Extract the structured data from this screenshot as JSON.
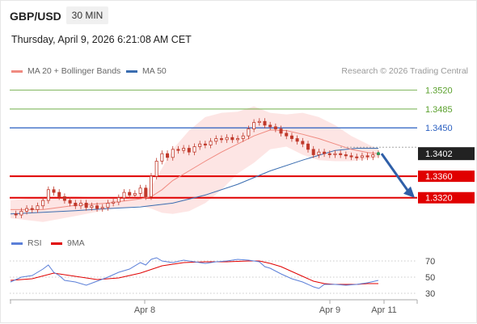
{
  "header": {
    "pair": "GBP/USD",
    "timeframe": "30 MIN",
    "datetime": "Thursday, April 9, 2026 6:21:08 AM CET"
  },
  "legend": {
    "ma20_label": "MA 20 + Bollinger Bands",
    "ma50_label": "MA 50",
    "rsi_label": "RSI",
    "ma9_label": "9MA"
  },
  "credit": "Research © 2026 Trading Central",
  "colors": {
    "ma20": "#f08a80",
    "bollinger_fill": "#fde0df",
    "ma50": "#3a6db0",
    "candle": "#c0392b",
    "resistance_green": "#5aa02c",
    "resistance_blue": "#2a5fc0",
    "support_red": "#e00000",
    "last_price_bg": "#222222",
    "rsi": "#5b7fd8",
    "rsi_ma9": "#e00000"
  },
  "chart_data": {
    "type": "line",
    "title": "GBP/USD",
    "xlabel": "",
    "ylabel": "",
    "ylim": [
      1.3255,
      1.3545
    ],
    "x_ticks": [
      "Apr 8",
      "Apr 9",
      "Apr 11"
    ],
    "last_price": 1.3402,
    "levels": [
      {
        "value": 1.352,
        "label": "1.3520",
        "kind": "resistance",
        "color": "#5aa02c",
        "style": "thin"
      },
      {
        "value": 1.3485,
        "label": "1.3485",
        "kind": "resistance",
        "color": "#5aa02c",
        "style": "thin"
      },
      {
        "value": 1.345,
        "label": "1.3450",
        "kind": "pivot",
        "color": "#2a5fc0",
        "style": "medium"
      },
      {
        "value": 1.336,
        "label": "1.3360",
        "kind": "support",
        "color": "#e00000",
        "style": "thick"
      },
      {
        "value": 1.332,
        "label": "1.3320",
        "kind": "support",
        "color": "#e00000",
        "style": "thick"
      }
    ],
    "price_points": [
      [
        0,
        1.329
      ],
      [
        4,
        1.3288
      ],
      [
        8,
        1.3295
      ],
      [
        12,
        1.33
      ],
      [
        16,
        1.3298
      ],
      [
        20,
        1.3305
      ],
      [
        24,
        1.3315
      ],
      [
        28,
        1.3335
      ],
      [
        32,
        1.333
      ],
      [
        36,
        1.3322
      ],
      [
        40,
        1.3315
      ],
      [
        44,
        1.331
      ],
      [
        48,
        1.3305
      ],
      [
        52,
        1.331
      ],
      [
        56,
        1.3302
      ],
      [
        60,
        1.3305
      ],
      [
        64,
        1.33
      ],
      [
        68,
        1.3302
      ],
      [
        72,
        1.331
      ],
      [
        76,
        1.3312
      ],
      [
        80,
        1.332
      ],
      [
        84,
        1.333
      ],
      [
        88,
        1.3325
      ],
      [
        92,
        1.3328
      ],
      [
        96,
        1.3338
      ],
      [
        100,
        1.3322
      ],
      [
        104,
        1.336
      ],
      [
        108,
        1.3388
      ],
      [
        112,
        1.3402
      ],
      [
        116,
        1.3395
      ],
      [
        120,
        1.341
      ],
      [
        124,
        1.3408
      ],
      [
        128,
        1.3412
      ],
      [
        132,
        1.3405
      ],
      [
        136,
        1.3415
      ],
      [
        140,
        1.342
      ],
      [
        144,
        1.3418
      ],
      [
        148,
        1.3425
      ],
      [
        152,
        1.343
      ],
      [
        156,
        1.3428
      ],
      [
        160,
        1.3432
      ],
      [
        164,
        1.3428
      ],
      [
        168,
        1.343
      ],
      [
        172,
        1.3435
      ],
      [
        176,
        1.3448
      ],
      [
        180,
        1.346
      ],
      [
        184,
        1.3462
      ],
      [
        188,
        1.3455
      ],
      [
        192,
        1.3452
      ],
      [
        196,
        1.3448
      ],
      [
        200,
        1.344
      ],
      [
        204,
        1.3435
      ],
      [
        208,
        1.343
      ],
      [
        212,
        1.3425
      ],
      [
        216,
        1.342
      ],
      [
        220,
        1.341
      ],
      [
        224,
        1.34
      ],
      [
        228,
        1.3405
      ],
      [
        232,
        1.3402
      ],
      [
        236,
        1.34
      ],
      [
        240,
        1.3402
      ],
      [
        244,
        1.34
      ],
      [
        248,
        1.3398
      ],
      [
        252,
        1.3396
      ],
      [
        256,
        1.3395
      ],
      [
        260,
        1.3398
      ],
      [
        264,
        1.3396
      ],
      [
        268,
        1.34
      ],
      [
        272,
        1.3402
      ]
    ],
    "ma20_points": [
      [
        0,
        1.3298
      ],
      [
        24,
        1.3298
      ],
      [
        48,
        1.3306
      ],
      [
        72,
        1.331
      ],
      [
        96,
        1.3318
      ],
      [
        104,
        1.3322
      ],
      [
        112,
        1.3335
      ],
      [
        120,
        1.3352
      ],
      [
        132,
        1.337
      ],
      [
        144,
        1.3388
      ],
      [
        156,
        1.3405
      ],
      [
        168,
        1.342
      ],
      [
        180,
        1.3435
      ],
      [
        192,
        1.3446
      ],
      [
        204,
        1.3445
      ],
      [
        216,
        1.3438
      ],
      [
        228,
        1.343
      ],
      [
        240,
        1.342
      ],
      [
        252,
        1.341
      ],
      [
        264,
        1.3404
      ],
      [
        272,
        1.3402
      ]
    ],
    "bb_upper": [
      [
        0,
        1.3315
      ],
      [
        24,
        1.3322
      ],
      [
        48,
        1.3323
      ],
      [
        72,
        1.3318
      ],
      [
        96,
        1.3328
      ],
      [
        104,
        1.334
      ],
      [
        112,
        1.3375
      ],
      [
        120,
        1.341
      ],
      [
        132,
        1.3445
      ],
      [
        144,
        1.347
      ],
      [
        156,
        1.3478
      ],
      [
        168,
        1.348
      ],
      [
        180,
        1.349
      ],
      [
        192,
        1.3478
      ],
      [
        204,
        1.3475
      ],
      [
        216,
        1.3478
      ],
      [
        228,
        1.347
      ],
      [
        240,
        1.3455
      ],
      [
        252,
        1.3435
      ],
      [
        264,
        1.342
      ],
      [
        272,
        1.341
      ]
    ],
    "bb_lower": [
      [
        0,
        1.3282
      ],
      [
        24,
        1.3275
      ],
      [
        48,
        1.3286
      ],
      [
        72,
        1.3298
      ],
      [
        96,
        1.3305
      ],
      [
        104,
        1.33
      ],
      [
        112,
        1.3292
      ],
      [
        120,
        1.329
      ],
      [
        132,
        1.3295
      ],
      [
        144,
        1.331
      ],
      [
        156,
        1.3335
      ],
      [
        168,
        1.3365
      ],
      [
        180,
        1.3385
      ],
      [
        192,
        1.341
      ],
      [
        204,
        1.3415
      ],
      [
        216,
        1.34
      ],
      [
        228,
        1.339
      ],
      [
        240,
        1.3388
      ],
      [
        252,
        1.3388
      ],
      [
        264,
        1.3392
      ],
      [
        272,
        1.3395
      ]
    ],
    "ma50_points": [
      [
        0,
        1.329
      ],
      [
        24,
        1.3293
      ],
      [
        48,
        1.3296
      ],
      [
        72,
        1.33
      ],
      [
        96,
        1.3303
      ],
      [
        120,
        1.331
      ],
      [
        144,
        1.3325
      ],
      [
        168,
        1.3345
      ],
      [
        192,
        1.337
      ],
      [
        216,
        1.339
      ],
      [
        240,
        1.3408
      ],
      [
        256,
        1.3412
      ],
      [
        272,
        1.3412
      ]
    ],
    "forecast": {
      "from": 1.3402,
      "to": 1.332
    },
    "rsi": {
      "ylim": [
        20,
        80
      ],
      "ticks": [
        70,
        50,
        30
      ],
      "rsi_points": [
        [
          0,
          44
        ],
        [
          8,
          50
        ],
        [
          16,
          52
        ],
        [
          24,
          60
        ],
        [
          28,
          65
        ],
        [
          32,
          56
        ],
        [
          36,
          52
        ],
        [
          40,
          46
        ],
        [
          48,
          44
        ],
        [
          56,
          40
        ],
        [
          64,
          45
        ],
        [
          72,
          50
        ],
        [
          80,
          56
        ],
        [
          88,
          60
        ],
        [
          96,
          68
        ],
        [
          100,
          65
        ],
        [
          104,
          72
        ],
        [
          108,
          74
        ],
        [
          112,
          70
        ],
        [
          120,
          68
        ],
        [
          128,
          71
        ],
        [
          136,
          69
        ],
        [
          144,
          67
        ],
        [
          152,
          69
        ],
        [
          160,
          70
        ],
        [
          168,
          72
        ],
        [
          176,
          71
        ],
        [
          184,
          69
        ],
        [
          188,
          63
        ],
        [
          192,
          61
        ],
        [
          200,
          54
        ],
        [
          208,
          48
        ],
        [
          216,
          44
        ],
        [
          224,
          38
        ],
        [
          228,
          36
        ],
        [
          232,
          41
        ],
        [
          240,
          41
        ],
        [
          248,
          40
        ],
        [
          256,
          41
        ],
        [
          264,
          43
        ],
        [
          272,
          46
        ]
      ],
      "ma9_points": [
        [
          0,
          46
        ],
        [
          16,
          48
        ],
        [
          32,
          55
        ],
        [
          48,
          51
        ],
        [
          64,
          47
        ],
        [
          80,
          49
        ],
        [
          96,
          55
        ],
        [
          112,
          64
        ],
        [
          128,
          68
        ],
        [
          144,
          69
        ],
        [
          160,
          69
        ],
        [
          176,
          70
        ],
        [
          184,
          70
        ],
        [
          192,
          67
        ],
        [
          200,
          63
        ],
        [
          208,
          57
        ],
        [
          216,
          51
        ],
        [
          224,
          45
        ],
        [
          232,
          42
        ],
        [
          240,
          41
        ],
        [
          256,
          41
        ],
        [
          264,
          42
        ],
        [
          272,
          42
        ]
      ]
    }
  }
}
